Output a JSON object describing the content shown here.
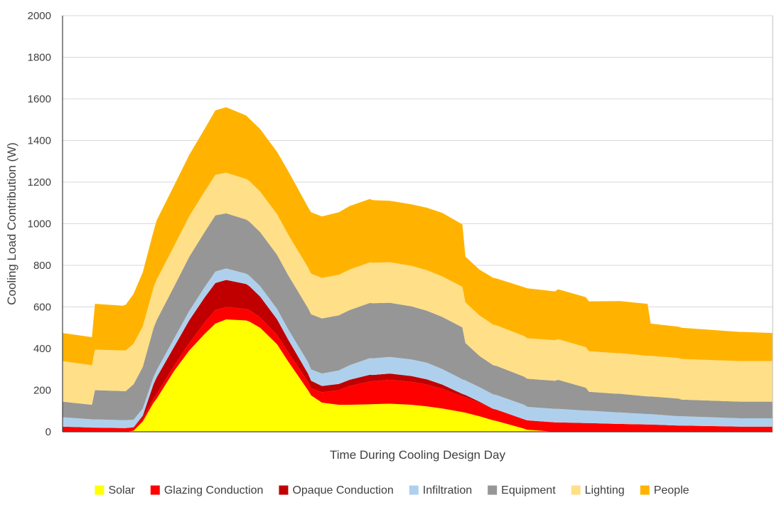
{
  "chart_data": {
    "type": "area",
    "stacked": true,
    "title": "",
    "xlabel": "Time During Cooling Design Day",
    "ylabel": "Cooling Load  Contribution (W)",
    "ylim": [
      0,
      2000
    ],
    "yticks": [
      0,
      200,
      400,
      600,
      800,
      1000,
      1200,
      1400,
      1600,
      1800,
      2000
    ],
    "grid": true,
    "legend_position": "bottom",
    "x": [
      1,
      1.95,
      2.05,
      2.95,
      3.05,
      3.3,
      3.6,
      3.95,
      4.05,
      4.6,
      5.1,
      5.6,
      5.95,
      6.3,
      6.95,
      7.05,
      7.4,
      7.95,
      8.3,
      8.95,
      9.05,
      9.4,
      9.95,
      10.3,
      10.95,
      11.05,
      11.6,
      12.3,
      12.8,
      13.3,
      13.95,
      14.05,
      14.5,
      14.95,
      15.05,
      15.95,
      16.05,
      16.95,
      17.05,
      17.95,
      18.05,
      18.95,
      19.05,
      19.95,
      20.05,
      20.95,
      21.05,
      22.95,
      23.05,
      24
    ],
    "series": [
      {
        "name": "Solar",
        "color": "#ffff00",
        "values": [
          0,
          0,
          0,
          0,
          0,
          5,
          50,
          140,
          160,
          290,
          390,
          470,
          520,
          540,
          535,
          530,
          500,
          420,
          340,
          200,
          175,
          140,
          130,
          130,
          132,
          133,
          135,
          130,
          122,
          112,
          95,
          92,
          75,
          55,
          52,
          15,
          10,
          0,
          0,
          0,
          0,
          0,
          0,
          0,
          0,
          0,
          0,
          0,
          0,
          0
        ]
      },
      {
        "name": "Glazing Conduction",
        "color": "#ff0000",
        "values": [
          25,
          20,
          20,
          18,
          18,
          17,
          17,
          20,
          22,
          25,
          35,
          55,
          65,
          60,
          55,
          55,
          50,
          45,
          45,
          40,
          35,
          50,
          70,
          90,
          110,
          110,
          115,
          110,
          105,
          95,
          75,
          75,
          65,
          55,
          55,
          45,
          45,
          45,
          45,
          42,
          42,
          38,
          38,
          35,
          35,
          30,
          30,
          25,
          25,
          25
        ]
      },
      {
        "name": "Opaque Conduction",
        "color": "#c00000",
        "values": [
          0,
          0,
          0,
          0,
          0,
          0,
          10,
          70,
          80,
          90,
          110,
          120,
          130,
          130,
          120,
          115,
          100,
          75,
          60,
          40,
          35,
          30,
          30,
          30,
          32,
          30,
          30,
          28,
          25,
          20,
          12,
          10,
          5,
          0,
          0,
          0,
          0,
          0,
          0,
          0,
          0,
          0,
          0,
          0,
          0,
          0,
          0,
          0,
          0,
          0
        ]
      },
      {
        "name": "Infiltration",
        "color": "#afd0ec",
        "values": [
          45,
          40,
          40,
          38,
          38,
          36,
          35,
          35,
          35,
          40,
          45,
          50,
          55,
          55,
          50,
          50,
          50,
          50,
          50,
          55,
          55,
          60,
          65,
          70,
          80,
          80,
          80,
          80,
          80,
          75,
          70,
          70,
          70,
          70,
          70,
          70,
          65,
          65,
          65,
          60,
          60,
          55,
          55,
          50,
          50,
          45,
          45,
          40,
          40,
          40
        ]
      },
      {
        "name": "Equipment",
        "color": "#969696",
        "values": [
          75,
          70,
          140,
          140,
          140,
          170,
          200,
          235,
          240,
          250,
          260,
          265,
          270,
          265,
          260,
          260,
          260,
          260,
          260,
          260,
          265,
          265,
          265,
          265,
          265,
          265,
          260,
          255,
          250,
          250,
          250,
          180,
          150,
          140,
          140,
          135,
          135,
          135,
          140,
          110,
          90,
          90,
          90,
          85,
          85,
          85,
          80,
          80,
          80,
          80
        ]
      },
      {
        "name": "Lighting",
        "color": "#ffdf87",
        "values": [
          195,
          190,
          195,
          195,
          195,
          195,
          195,
          195,
          195,
          195,
          195,
          195,
          195,
          195,
          195,
          195,
          195,
          195,
          195,
          195,
          195,
          195,
          195,
          195,
          195,
          195,
          195,
          195,
          195,
          195,
          195,
          195,
          195,
          195,
          195,
          195,
          195,
          195,
          195,
          195,
          195,
          195,
          195,
          195,
          195,
          195,
          195,
          195,
          195,
          195
        ]
      },
      {
        "name": "People",
        "color": "#ffb300",
        "values": [
          135,
          135,
          220,
          215,
          220,
          240,
          260,
          270,
          285,
          290,
          295,
          300,
          310,
          315,
          305,
          300,
          300,
          300,
          305,
          290,
          295,
          295,
          300,
          305,
          305,
          300,
          295,
          295,
          300,
          305,
          300,
          220,
          220,
          225,
          225,
          235,
          240,
          235,
          240,
          240,
          240,
          250,
          250,
          250,
          155,
          150,
          150,
          140,
          140,
          135
        ]
      }
    ]
  }
}
